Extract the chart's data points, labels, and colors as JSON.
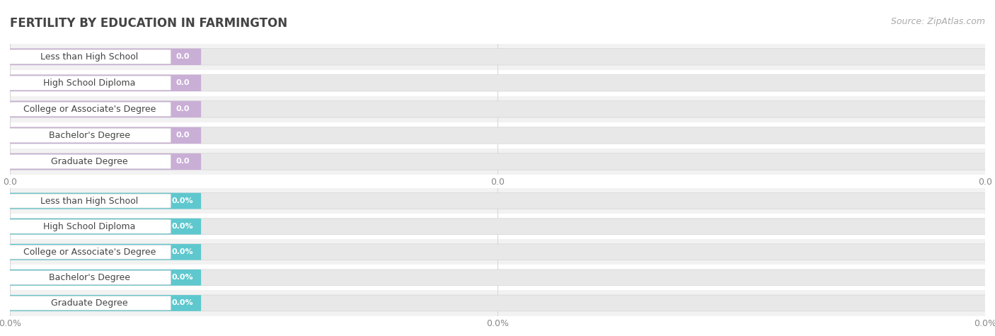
{
  "title": "FERTILITY BY EDUCATION IN FARMINGTON",
  "source": "Source: ZipAtlas.com",
  "categories": [
    "Less than High School",
    "High School Diploma",
    "College or Associate's Degree",
    "Bachelor's Degree",
    "Graduate Degree"
  ],
  "section1_values": [
    0.0,
    0.0,
    0.0,
    0.0,
    0.0
  ],
  "section2_values": [
    0.0,
    0.0,
    0.0,
    0.0,
    0.0
  ],
  "section1_bar_color": "#c9aed6",
  "section2_bar_color": "#5ec8ce",
  "row_bg_even": "#f2f2f2",
  "row_bg_odd": "#ffffff",
  "grid_color": "#d8d8d8",
  "x_tick_labels_s1": [
    "0.0",
    "0.0",
    "0.0"
  ],
  "x_tick_labels_s2": [
    "0.0%",
    "0.0%",
    "0.0%"
  ],
  "title_fontsize": 12,
  "label_fontsize": 9,
  "value_fontsize": 8,
  "tick_fontsize": 9,
  "source_fontsize": 9,
  "background_color": "#ffffff"
}
